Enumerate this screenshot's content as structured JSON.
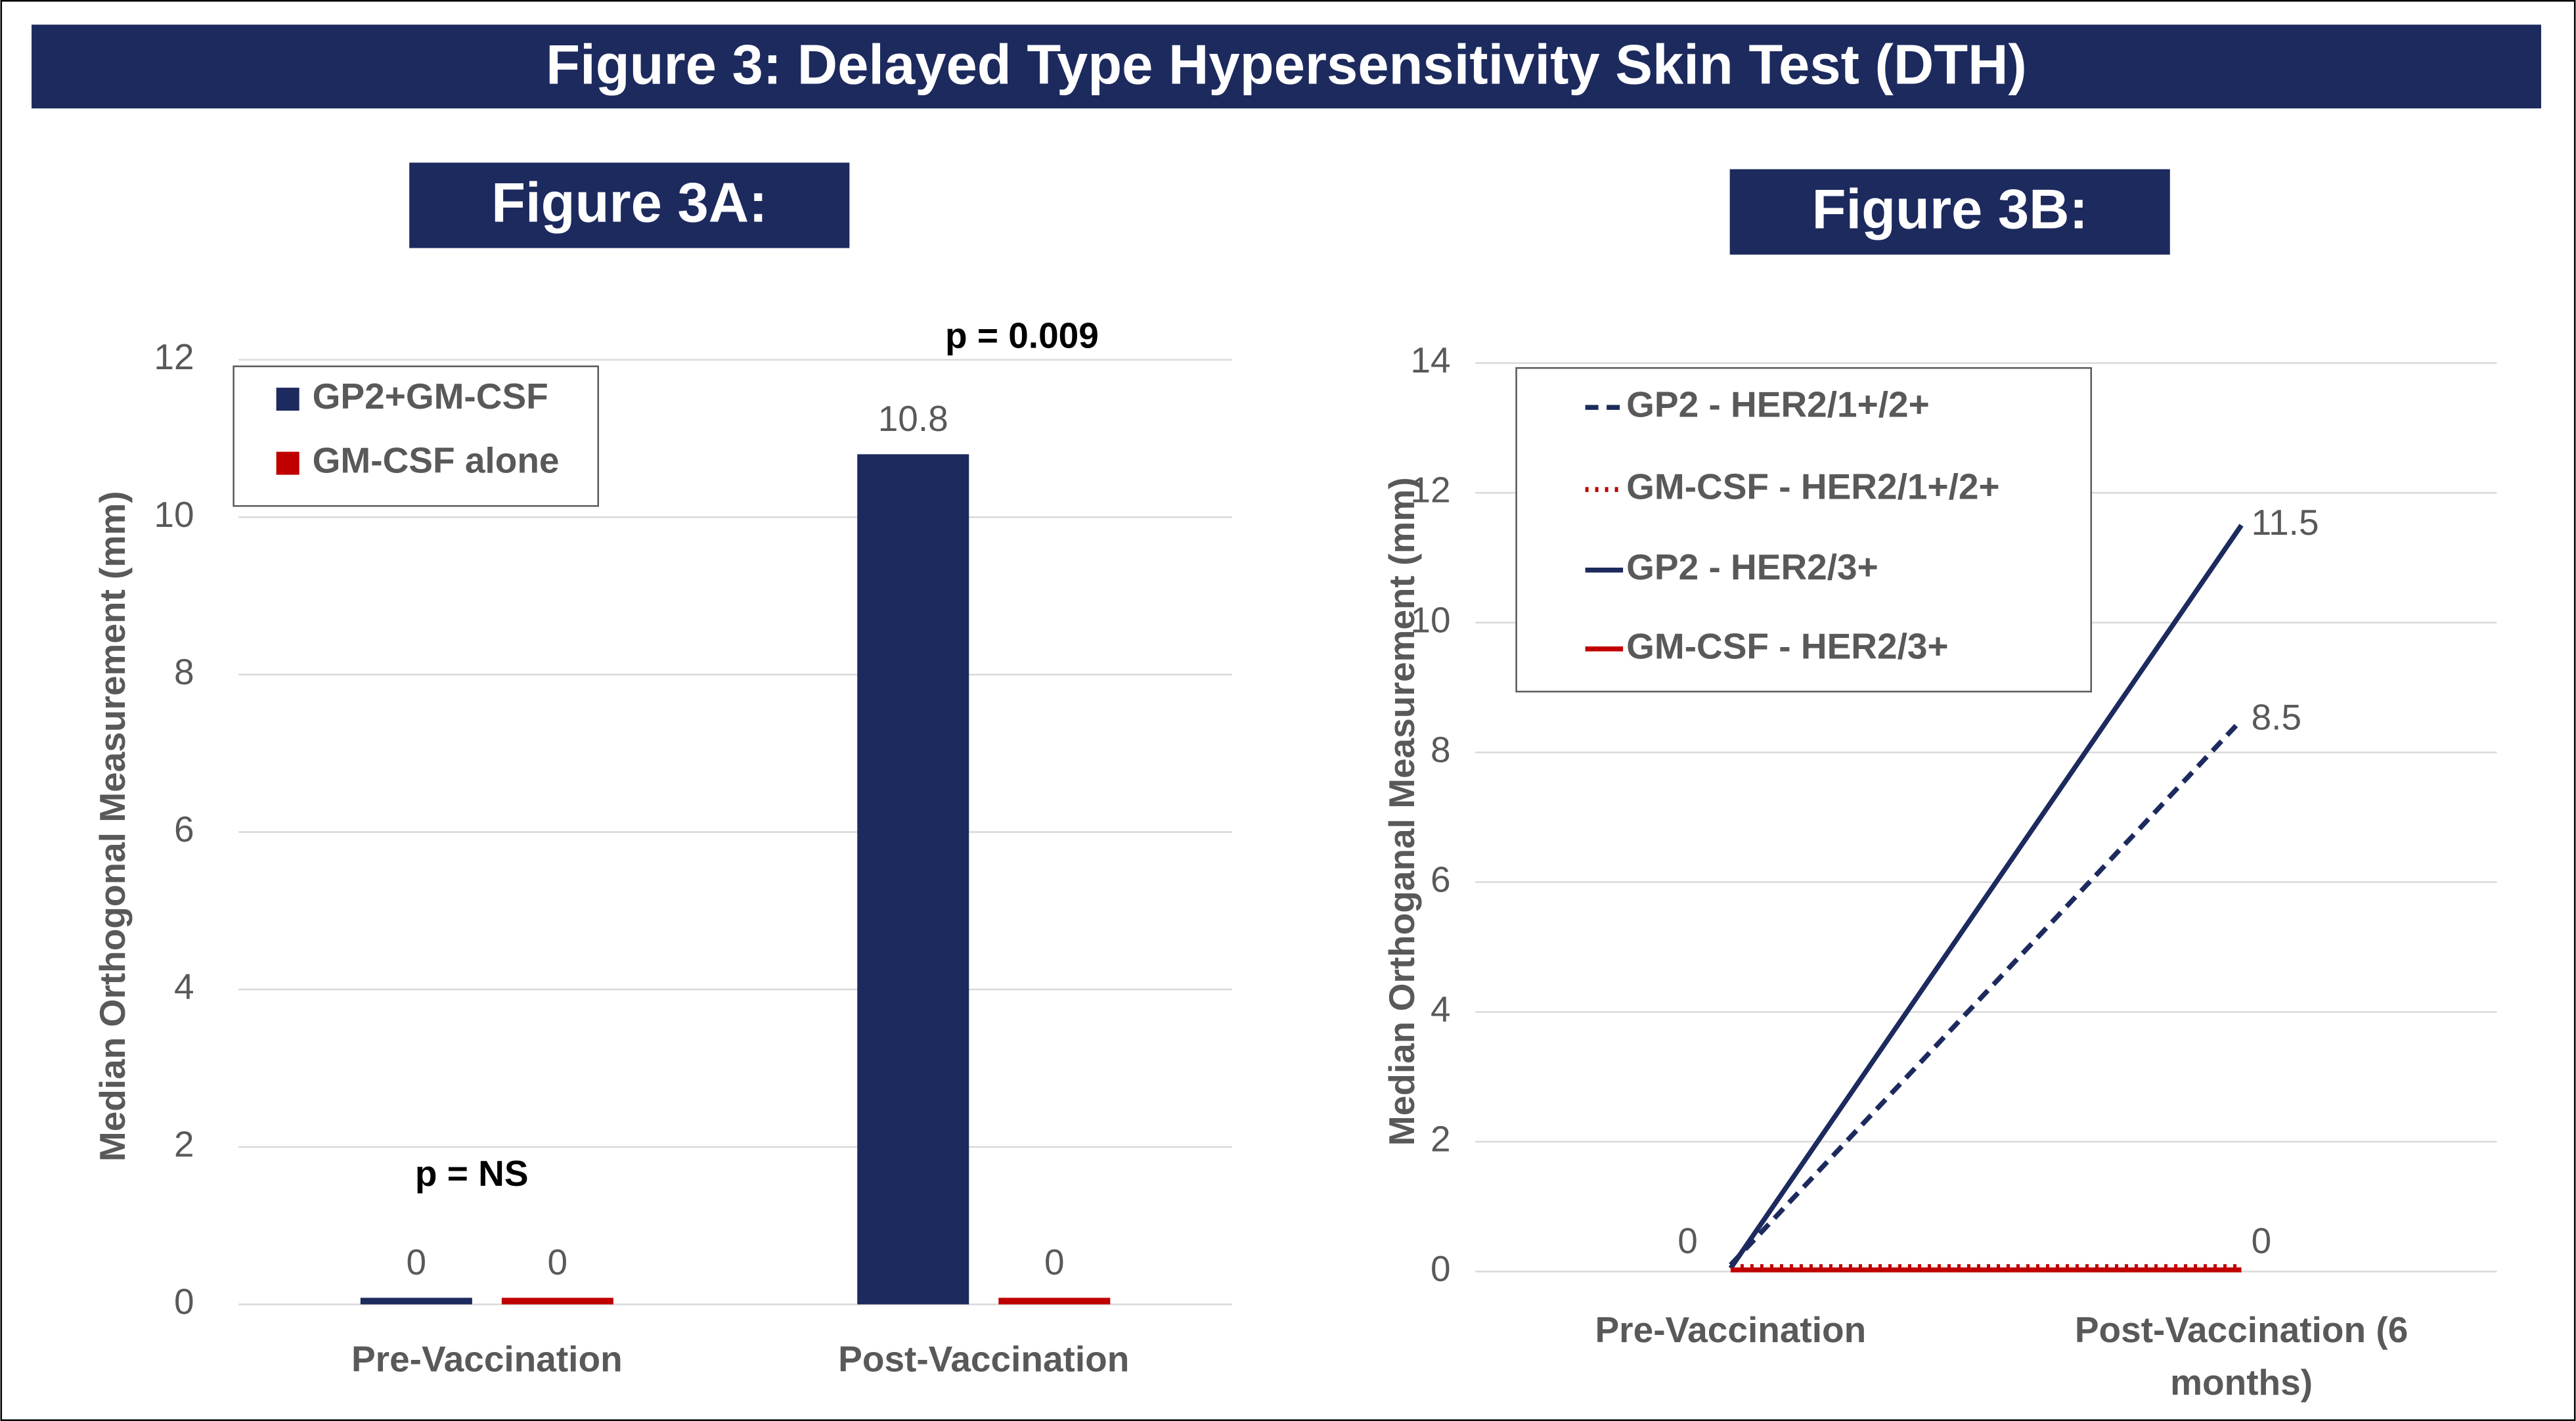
{
  "title": "Figure 3: Delayed Type Hypersensitivity Skin Test (DTH)",
  "chart_data": [
    {
      "type": "bar",
      "title": "Figure 3A:",
      "y_label": "Median Orthogonal Measurement (mm)",
      "categories": [
        "Pre-Vaccination",
        "Post-Vaccination"
      ],
      "series": [
        {
          "name": "GP2+GM-CSF",
          "color": "#1c2a5e",
          "values": [
            0,
            10.8
          ]
        },
        {
          "name": "GM-CSF alone",
          "color": "#c00000",
          "values": [
            0,
            0
          ]
        }
      ],
      "annotations": [
        "p = NS",
        "p = 0.009"
      ],
      "ylim": [
        0,
        12
      ],
      "yticks": [
        0,
        2,
        4,
        6,
        8,
        10,
        12
      ],
      "grid": true,
      "legend": "top-left"
    },
    {
      "type": "line",
      "title": "Figure 3B:",
      "y_label": "Median Orthoganal Measurement (mm)",
      "categories": [
        "Pre-Vaccination",
        "Post-Vaccination (6 months)"
      ],
      "series": [
        {
          "name": "GP2 - HER2/1+/2+",
          "color": "#1c2a5e",
          "dash": "dashed",
          "values": [
            0,
            8.5
          ],
          "labeled": [
            false,
            true
          ]
        },
        {
          "name": "GM-CSF - HER2/1+/2+",
          "color": "#c00000",
          "dash": "dotted",
          "values": [
            0,
            0
          ],
          "labeled": [
            false,
            false
          ]
        },
        {
          "name": "GP2 - HER2/3+",
          "color": "#1c2a5e",
          "dash": "solid",
          "values": [
            0,
            11.5
          ],
          "labeled": [
            false,
            true
          ]
        },
        {
          "name": "GM-CSF - HER2/3+",
          "color": "#c00000",
          "dash": "solid",
          "values": [
            0,
            0
          ],
          "labeled": [
            true,
            true
          ]
        }
      ],
      "ylim": [
        0,
        14
      ],
      "yticks": [
        0,
        2,
        4,
        6,
        8,
        10,
        12,
        14
      ],
      "grid": true,
      "legend": "top-left"
    }
  ]
}
